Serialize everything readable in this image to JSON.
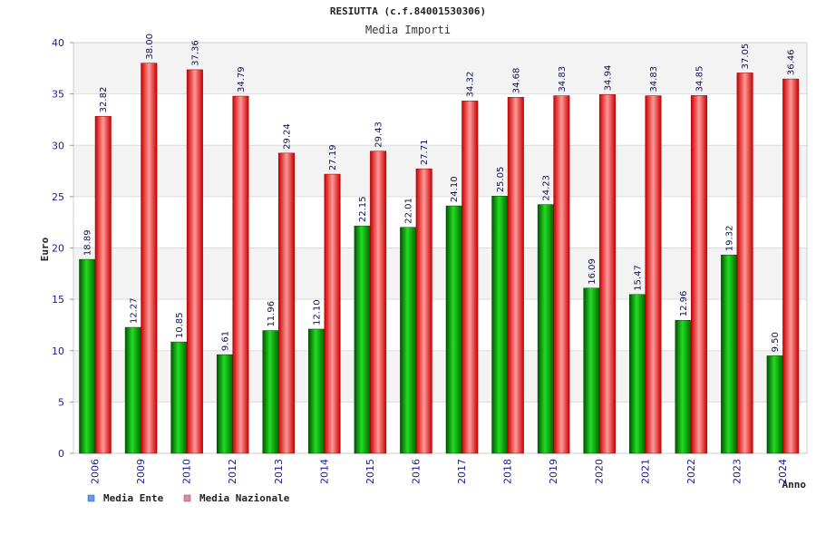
{
  "chart_data": {
    "type": "bar",
    "title": "RESIUTTA (c.f.84001530306)",
    "subtitle": "Media Importi",
    "xlabel": "Anno",
    "ylabel": "Euro",
    "ylim": [
      0,
      40
    ],
    "yticks": [
      0,
      5,
      10,
      15,
      20,
      25,
      30,
      35,
      40
    ],
    "grid": true,
    "legend_position": "bottom-left",
    "categories": [
      "2006",
      "2009",
      "2010",
      "2012",
      "2013",
      "2014",
      "2015",
      "2016",
      "2017",
      "2018",
      "2019",
      "2020",
      "2021",
      "2022",
      "2023",
      "2024"
    ],
    "series": [
      {
        "name": "Media Ente",
        "color": "#00aa00",
        "legend_color": "#6699ee",
        "values": [
          18.89,
          12.27,
          10.85,
          9.61,
          11.96,
          12.1,
          22.15,
          22.01,
          24.1,
          25.05,
          24.23,
          16.09,
          15.47,
          12.96,
          19.32,
          9.5
        ],
        "labels": [
          "18.89",
          "12.27",
          "10.85",
          "9.61",
          "11.96",
          "12.10",
          "22.15",
          "22.01",
          "24.10",
          "25.05",
          "24.23",
          "16.09",
          "15.47",
          "12.96",
          "19.32",
          "9.50"
        ]
      },
      {
        "name": "Media Nazionale",
        "color": "#ee0000",
        "legend_color": "#dd88aa",
        "values": [
          32.82,
          38.0,
          37.36,
          34.79,
          29.24,
          27.19,
          29.43,
          27.71,
          34.32,
          34.68,
          34.83,
          34.94,
          34.83,
          34.85,
          37.05,
          36.46
        ],
        "labels": [
          "32.82",
          "38.00",
          "37.36",
          "34.79",
          "29.24",
          "27.19",
          "29.43",
          "27.71",
          "34.32",
          "34.68",
          "34.83",
          "34.94",
          "34.83",
          "34.85",
          "37.05",
          "36.46"
        ]
      }
    ]
  }
}
